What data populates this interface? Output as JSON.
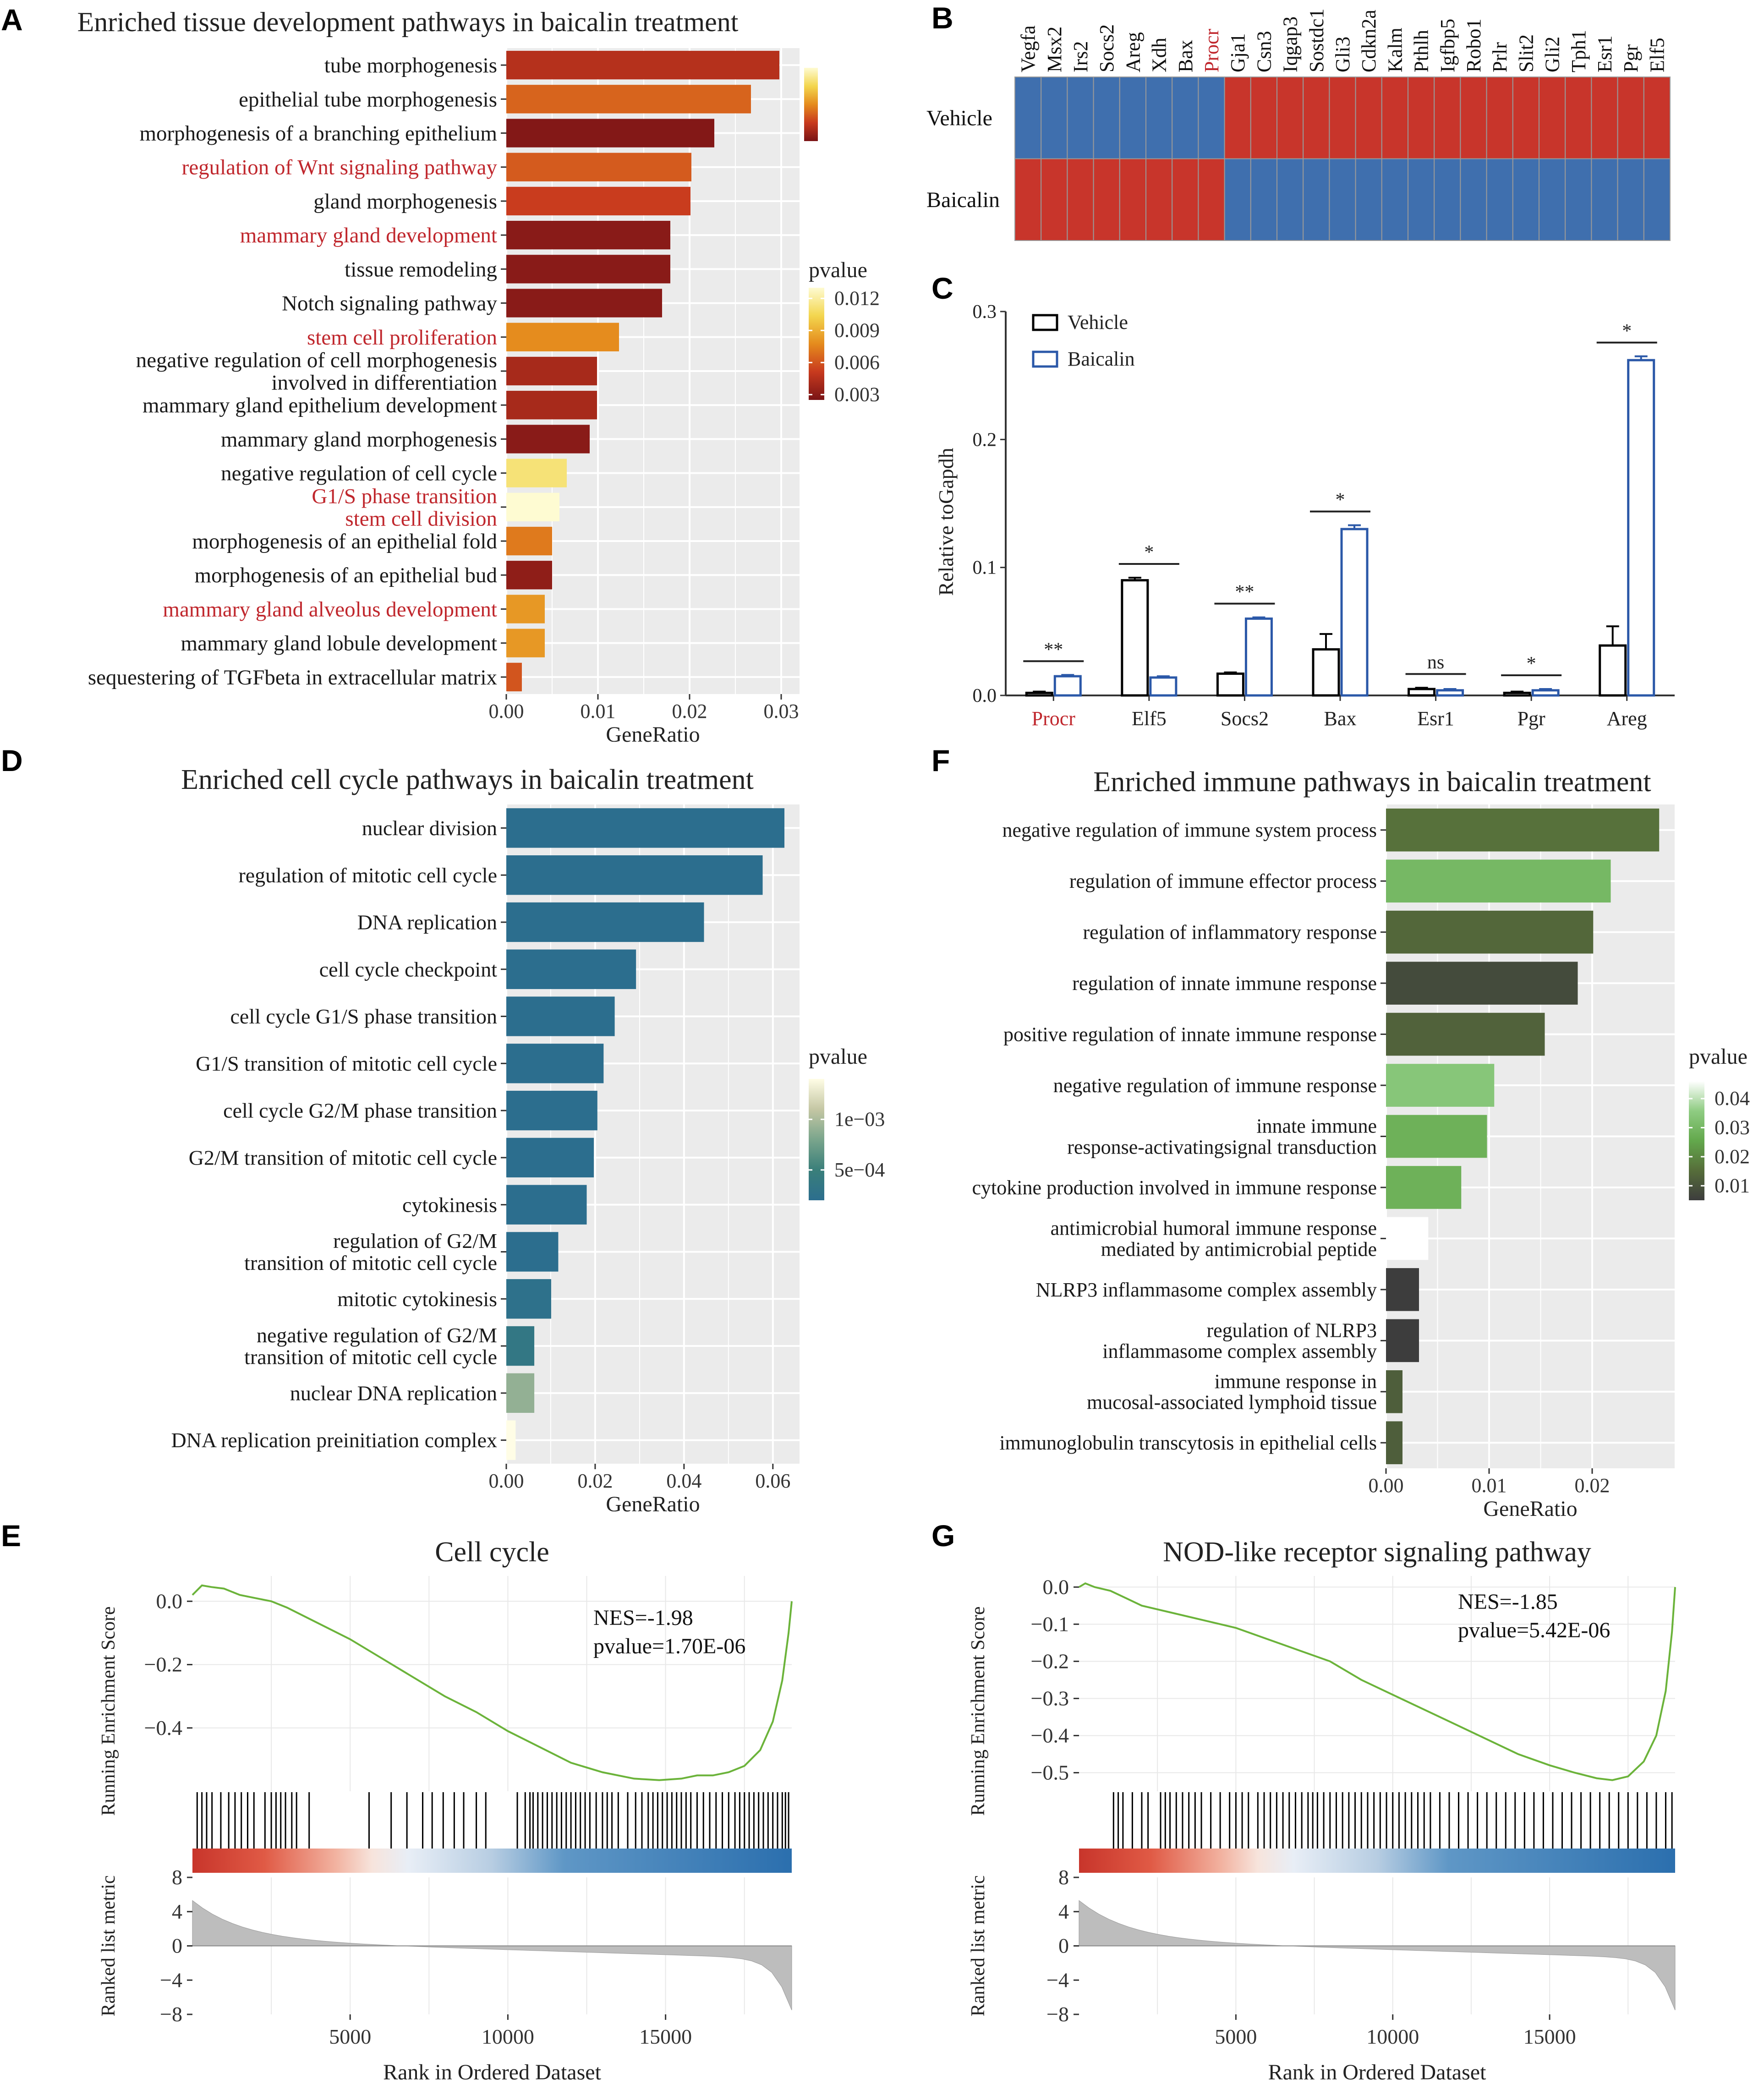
{
  "panel_labels": [
    "A",
    "B",
    "C",
    "D",
    "E",
    "F",
    "G"
  ],
  "colors": {
    "panel_bg": "#ebebeb",
    "grid": "#ffffff",
    "highlight_text": "#c0272d",
    "vehicle": "#000000",
    "baicalin": "#2b58a8",
    "heat_high": "#c8352b",
    "heat_low": "#3f6fae",
    "gsea_line": "#6bb33a",
    "hit_line": "#000000",
    "metric_fill": "#bdbdbd"
  },
  "chart_data": [
    {
      "id": "A",
      "type": "bar",
      "orientation": "horizontal",
      "title": "Enriched tissue development pathways in baicalin treatment",
      "xlabel": "GeneRatio",
      "xlim": [
        0,
        0.032
      ],
      "xticks": [
        0,
        0.01,
        0.02,
        0.03
      ],
      "xtick_labels": [
        "0.00",
        "0.01",
        "0.02",
        "0.03"
      ],
      "legend_title": "pvalue",
      "legend_position": "right",
      "color_scale": {
        "min": 0.0025,
        "max": 0.013,
        "colors": [
          "#7a1416",
          "#c83a1e",
          "#e58b1d",
          "#f3d64e",
          "#fefbd2"
        ],
        "labels": [
          "0.012",
          "0.009",
          "0.006",
          "0.003"
        ],
        "label_values": [
          0.012,
          0.009,
          0.006,
          0.003
        ]
      },
      "categories": [
        {
          "label": "tube morphogenesis",
          "highlight": false
        },
        {
          "label": "epithelial tube morphogenesis",
          "highlight": false
        },
        {
          "label": "morphogenesis of a branching epithelium",
          "highlight": false
        },
        {
          "label": "regulation of Wnt signaling pathway",
          "highlight": true
        },
        {
          "label": "gland morphogenesis",
          "highlight": false
        },
        {
          "label": "mammary gland development",
          "highlight": true
        },
        {
          "label": "tissue remodeling",
          "highlight": false
        },
        {
          "label": "Notch signaling pathway",
          "highlight": false
        },
        {
          "label": "stem cell proliferation",
          "highlight": true
        },
        {
          "label": "negative regulation of cell morphogenesis|involved in differentiation",
          "highlight": false
        },
        {
          "label": "mammary gland epithelium development",
          "highlight": false
        },
        {
          "label": "mammary gland morphogenesis",
          "highlight": false
        },
        {
          "label": "negative regulation of cell cycle",
          "highlight": false
        },
        {
          "label": "G1/S phase transition|stem cell division",
          "highlight": true
        },
        {
          "label": "morphogenesis of an epithelial fold",
          "highlight": false
        },
        {
          "label": "morphogenesis of an epithelial bud",
          "highlight": false
        },
        {
          "label": "mammary gland alveolus development",
          "highlight": true
        },
        {
          "label": "mammary gland lobule development",
          "highlight": false
        },
        {
          "label": "sequestering of TGFbeta in extracellular matrix",
          "highlight": false
        }
      ],
      "values": [
        0.0298,
        0.0267,
        0.0227,
        0.0202,
        0.0201,
        0.0179,
        0.0179,
        0.017,
        0.0123,
        0.0099,
        0.0099,
        0.0091,
        0.0066,
        0.0058,
        0.005,
        0.005,
        0.0042,
        0.0042,
        0.0017
      ],
      "pvalues": [
        0.0045,
        0.0065,
        0.0028,
        0.0062,
        0.0052,
        0.003,
        0.003,
        0.003,
        0.0078,
        0.004,
        0.004,
        0.003,
        0.0112,
        0.013,
        0.0072,
        0.0032,
        0.0082,
        0.0082,
        0.006
      ]
    },
    {
      "id": "B",
      "type": "heatmap",
      "columns": [
        "Vegfa",
        "Msx2",
        "Irs2",
        "Socs2",
        "Areg",
        "Xdh",
        "Bax",
        "Procr",
        "Gja1",
        "Csn3",
        "Iqgap3",
        "Sostdc1",
        "Gli3",
        "Cdkn2a",
        "Kalm",
        "Pthlh",
        "Igfbp5",
        "Robo1",
        "Prlr",
        "Slit2",
        "Gli2",
        "Tph1",
        "Esr1",
        "Pgr",
        "Elf5"
      ],
      "highlight_columns": [
        "Procr"
      ],
      "rows": [
        "Vehicle",
        "Baicalin"
      ],
      "values": [
        [
          0,
          0,
          0,
          0,
          0,
          0,
          0,
          0,
          1,
          1,
          1,
          1,
          1,
          1,
          1,
          1,
          1,
          1,
          1,
          1,
          1,
          1,
          1,
          1,
          1
        ],
        [
          1,
          1,
          1,
          1,
          1,
          1,
          1,
          1,
          0,
          0,
          0,
          0,
          0,
          0,
          0,
          0,
          0,
          0,
          0,
          0,
          0,
          0,
          0,
          0,
          0
        ]
      ]
    },
    {
      "id": "C",
      "type": "bar",
      "title": "",
      "ylabel": "Relative toGapdh",
      "ylim": [
        0,
        0.3
      ],
      "yticks": [
        0,
        0.1,
        0.2,
        0.3
      ],
      "ytick_labels": [
        "0.0",
        "0.1",
        "0.2",
        "0.3"
      ],
      "categories": [
        "Procr",
        "Elf5",
        "Socs2",
        "Bax",
        "Esr1",
        "Pgr",
        "Areg"
      ],
      "highlight_categories": [
        "Procr"
      ],
      "legend_position": "top-left",
      "series": [
        {
          "name": "Vehicle",
          "values": [
            0.002,
            0.09,
            0.017,
            0.036,
            0.005,
            0.002,
            0.039
          ],
          "errors": [
            0.001,
            0.002,
            0.001,
            0.012,
            0.001,
            0.001,
            0.015
          ]
        },
        {
          "name": "Baicalin",
          "values": [
            0.015,
            0.014,
            0.06,
            0.13,
            0.004,
            0.004,
            0.262
          ],
          "errors": [
            0.001,
            0.001,
            0.001,
            0.003,
            0.001,
            0.001,
            0.003
          ]
        }
      ],
      "significance": [
        "**",
        "*",
        "**",
        "*",
        "ns",
        "*",
        "*"
      ]
    },
    {
      "id": "D",
      "type": "bar",
      "orientation": "horizontal",
      "title": "Enriched cell cycle  pathways in baicalin treatment",
      "xlabel": "GeneRatio",
      "xlim": [
        0,
        0.066
      ],
      "xticks": [
        0,
        0.02,
        0.04,
        0.06
      ],
      "xtick_labels": [
        "0.00",
        "0.02",
        "0.04",
        "0.06"
      ],
      "legend_title": "pvalue",
      "legend_position": "right",
      "color_scale": {
        "min": 0.0002,
        "max": 0.0014,
        "colors": [
          "#2c6e8e",
          "#3a7f7a",
          "#7aa58c",
          "#c5c7a4",
          "#fffde6"
        ],
        "labels": [
          "1e−03",
          "5e−04"
        ],
        "label_values": [
          0.001,
          0.0005
        ]
      },
      "categories": [
        {
          "label": "nuclear division"
        },
        {
          "label": "regulation of mitotic cell cycle"
        },
        {
          "label": "DNA replication"
        },
        {
          "label": "cell cycle checkpoint"
        },
        {
          "label": "cell cycle G1/S phase transition"
        },
        {
          "label": "G1/S transition of mitotic cell cycle"
        },
        {
          "label": "cell cycle G2/M phase transition"
        },
        {
          "label": "G2/M transition of mitotic cell cycle"
        },
        {
          "label": "cytokinesis"
        },
        {
          "label": "regulation of G2/M|transition of mitotic cell cycle"
        },
        {
          "label": "mitotic cytokinesis"
        },
        {
          "label": "negative regulation of G2/M|transition of mitotic cell cycle"
        },
        {
          "label": "nuclear DNA replication"
        },
        {
          "label": "DNA replication preinitiation complex"
        }
      ],
      "values": [
        0.0626,
        0.0577,
        0.0445,
        0.0292,
        0.0244,
        0.0219,
        0.0205,
        0.0197,
        0.0181,
        0.0117,
        0.0101,
        0.0063,
        0.0063,
        0.0021
      ],
      "pvalues": [
        0.0002,
        0.0002,
        0.0002,
        0.0002,
        0.0002,
        0.0002,
        0.0002,
        0.0002,
        0.0002,
        0.0002,
        0.00025,
        0.00035,
        0.0009,
        0.0014
      ]
    },
    {
      "id": "F",
      "type": "bar",
      "orientation": "horizontal",
      "title": "Enriched immune pathways in baicalin treatment",
      "xlabel": "GeneRatio",
      "xlim": [
        0,
        0.028
      ],
      "xticks": [
        0,
        0.01,
        0.02
      ],
      "xtick_labels": [
        "0.00",
        "0.01",
        "0.02"
      ],
      "legend_title": "pvalue",
      "legend_position": "right",
      "color_scale": {
        "min": 0.005,
        "max": 0.046,
        "colors": [
          "#3d3d3d",
          "#566d3a",
          "#63a84c",
          "#8fcc82",
          "#ffffff"
        ],
        "labels": [
          "0.04",
          "0.03",
          "0.02",
          "0.01"
        ],
        "label_values": [
          0.04,
          0.03,
          0.02,
          0.01
        ]
      },
      "categories": [
        {
          "label": "negative regulation of immune system process"
        },
        {
          "label": "regulation of immune effector process"
        },
        {
          "label": "regulation of inflammatory response"
        },
        {
          "label": "regulation of innate immune response"
        },
        {
          "label": "positive regulation of innate immune response"
        },
        {
          "label": "negative regulation of immune response"
        },
        {
          "label": "innate immune|response-activatingsignal transduction"
        },
        {
          "label": "cytokine production involved in immune response"
        },
        {
          "label": "antimicrobial humoral immune response|mediated by antimicrobial peptide"
        },
        {
          "label": "NLRP3 inflammasome complex assembly"
        },
        {
          "label": "regulation of NLRP3|inflammasome complex assembly"
        },
        {
          "label": "immune response in|mucosal-associated lymphoid tissue"
        },
        {
          "label": "immunoglobulin transcytosis in epithelial cells"
        }
      ],
      "values": [
        0.0265,
        0.0218,
        0.0201,
        0.0186,
        0.0154,
        0.0105,
        0.0098,
        0.0073,
        0.0041,
        0.0032,
        0.0032,
        0.0016,
        0.0016
      ],
      "pvalues": [
        0.016,
        0.03,
        0.014,
        0.008,
        0.013,
        0.034,
        0.028,
        0.028,
        0.046,
        0.005,
        0.005,
        0.012,
        0.012
      ]
    },
    {
      "id": "E",
      "type": "line",
      "title": "Cell cycle",
      "xlabel": "Rank in Ordered Dataset",
      "ylabel": "Running Enrichment Score",
      "ylabel_bottom": "Ranked list metric",
      "xlim": [
        0,
        19000
      ],
      "xticks": [
        5000,
        10000,
        15000
      ],
      "xtick_labels": [
        "5000",
        "10000",
        "15000"
      ],
      "ylim": [
        -0.6,
        0.08
      ],
      "yticks": [
        0,
        -0.2,
        -0.4
      ],
      "ytick_labels": [
        "0.0",
        "−0.2",
        "−0.4"
      ],
      "metric_ylim": [
        -8,
        8
      ],
      "metric_yticks": [
        8,
        4,
        0,
        -4,
        -8
      ],
      "metric_ytick_labels": [
        "8",
        "4",
        "0",
        "−4",
        "−8"
      ],
      "nes_text": "NES=-1.98",
      "pvalue_text": "pvalue=1.70E-06",
      "x": [
        0,
        300,
        600,
        1000,
        1500,
        2000,
        2500,
        3000,
        4000,
        5000,
        6000,
        7000,
        8000,
        9000,
        10000,
        11000,
        12000,
        13000,
        14000,
        14800,
        15500,
        16000,
        16500,
        17000,
        17500,
        18000,
        18400,
        18700,
        18900,
        19000
      ],
      "y": [
        0.02,
        0.05,
        0.045,
        0.04,
        0.02,
        0.01,
        0.0,
        -0.02,
        -0.07,
        -0.12,
        -0.18,
        -0.24,
        -0.3,
        -0.35,
        -0.41,
        -0.46,
        -0.51,
        -0.54,
        -0.56,
        -0.565,
        -0.56,
        -0.55,
        -0.55,
        -0.54,
        -0.52,
        -0.47,
        -0.38,
        -0.25,
        -0.1,
        0.0
      ],
      "hits": [
        150,
        300,
        450,
        620,
        900,
        1150,
        1350,
        1550,
        1750,
        1950,
        2300,
        2500,
        2650,
        2800,
        2950,
        3150,
        3300,
        3700,
        5600,
        6300,
        6800,
        7300,
        7600,
        7950,
        8300,
        8600,
        9000,
        9300,
        10300,
        10550,
        10700,
        10800,
        10950,
        11100,
        11250,
        11400,
        11550,
        11700,
        11850,
        12000,
        12150,
        12300,
        12450,
        12600,
        12800,
        13000,
        13150,
        13300,
        13500,
        13800,
        14050,
        14250,
        14450,
        14600,
        14750,
        14900,
        15050,
        15200,
        15350,
        15500,
        15650,
        15800,
        16000,
        16200,
        16400,
        16600,
        16800,
        17000,
        17200,
        17350,
        17500,
        17650,
        17800,
        17950,
        18100,
        18250,
        18400,
        18550,
        18700,
        18800,
        18900
      ]
    },
    {
      "id": "G",
      "type": "line",
      "title": "NOD-like receptor signaling pathway",
      "xlabel": "Rank in Ordered Dataset",
      "ylabel": "Running Enrichment Score",
      "ylabel_bottom": "Ranked list metric",
      "xlim": [
        0,
        19000
      ],
      "xticks": [
        5000,
        10000,
        15000
      ],
      "xtick_labels": [
        "5000",
        "10000",
        "15000"
      ],
      "ylim": [
        -0.55,
        0.03
      ],
      "yticks": [
        0,
        -0.1,
        -0.2,
        -0.3,
        -0.4,
        -0.5
      ],
      "ytick_labels": [
        "0.0",
        "−0.1",
        "−0.2",
        "−0.3",
        "−0.4",
        "−0.5"
      ],
      "metric_ylim": [
        -8,
        8
      ],
      "metric_yticks": [
        8,
        4,
        0,
        -4,
        -8
      ],
      "metric_ytick_labels": [
        "8",
        "4",
        "0",
        "−4",
        "−8"
      ],
      "nes_text": "NES=-1.85",
      "pvalue_text": "pvalue=5.42E-06",
      "x": [
        0,
        200,
        500,
        1000,
        1500,
        2000,
        3000,
        4000,
        5000,
        6000,
        7000,
        8000,
        9000,
        10000,
        11000,
        12000,
        13000,
        14000,
        15000,
        15800,
        16500,
        17000,
        17500,
        18000,
        18400,
        18700,
        18900,
        19000
      ],
      "y": [
        0.0,
        0.01,
        0.0,
        -0.01,
        -0.03,
        -0.05,
        -0.07,
        -0.09,
        -0.11,
        -0.14,
        -0.17,
        -0.2,
        -0.25,
        -0.29,
        -0.33,
        -0.37,
        -0.41,
        -0.45,
        -0.48,
        -0.5,
        -0.515,
        -0.52,
        -0.51,
        -0.47,
        -0.4,
        -0.28,
        -0.12,
        0.0
      ],
      "hits": [
        1100,
        1250,
        1400,
        1700,
        2000,
        2200,
        2600,
        2750,
        2900,
        3100,
        3300,
        3500,
        3700,
        3900,
        4200,
        4500,
        4800,
        5000,
        5200,
        5400,
        5700,
        5900,
        6100,
        6300,
        6500,
        6700,
        6900,
        7100,
        7300,
        7450,
        7600,
        7800,
        8000,
        8200,
        8400,
        8600,
        8800,
        9000,
        9200,
        9400,
        9600,
        9800,
        10000,
        10200,
        10400,
        10600,
        10800,
        11000,
        11200,
        11500,
        11800,
        12100,
        12400,
        12700,
        13000,
        13300,
        13600,
        13900,
        14200,
        14500,
        14800,
        15100,
        15400,
        15700,
        16000,
        16300,
        16600,
        16900,
        17200,
        17500,
        17800,
        18100,
        18400,
        18700,
        18900
      ]
    }
  ]
}
